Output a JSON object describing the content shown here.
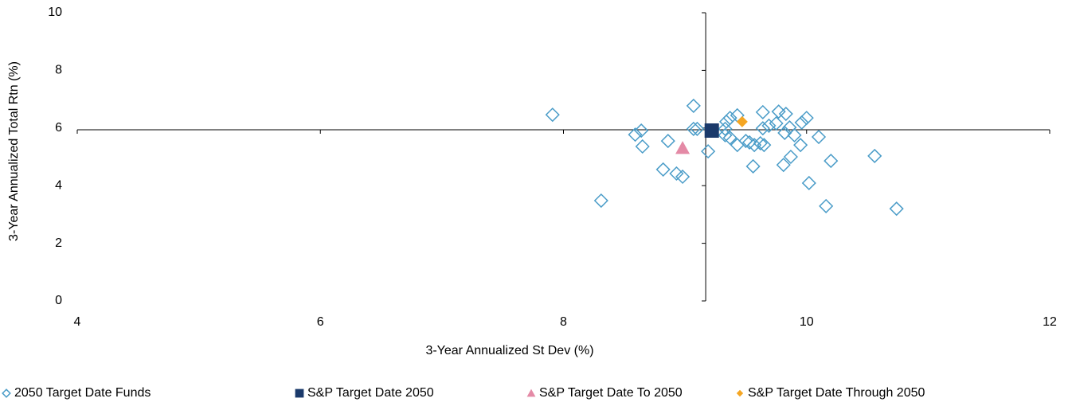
{
  "chart_data": {
    "type": "scatter",
    "xlabel": "3-Year Annualized St Dev (%)",
    "ylabel": "3-Year Annualized Total Rtn (%)",
    "xlim": [
      4,
      12
    ],
    "xticks": [
      4,
      6,
      8,
      10,
      12
    ],
    "ylim": [
      0,
      10
    ],
    "yticks": [
      0,
      2,
      4,
      6,
      8,
      10
    ],
    "x_axis_crosses_at": 5.94,
    "y_axis_crosses_at": 9.17,
    "legend": "bottom",
    "series": [
      {
        "name": "2050 Target Date Funds",
        "color": "#4a9cc8",
        "marker": "diamond",
        "filled": false,
        "x": [
          7.91,
          8.31,
          8.59,
          8.64,
          8.65,
          8.82,
          8.86,
          8.93,
          8.98,
          9.07,
          9.07,
          9.1,
          9.19,
          9.34,
          9.37,
          9.33,
          9.33,
          9.37,
          9.43,
          9.43,
          9.5,
          9.53,
          9.57,
          9.56,
          9.62,
          9.65,
          9.64,
          9.64,
          9.69,
          9.75,
          9.77,
          9.82,
          9.81,
          9.83,
          9.86,
          9.87,
          9.9,
          9.95,
          9.96,
          10.0,
          10.02,
          10.1,
          10.2,
          10.16,
          10.56,
          10.74
        ],
        "y": [
          6.46,
          3.48,
          5.77,
          5.91,
          5.36,
          4.56,
          5.55,
          4.42,
          4.31,
          6.77,
          5.97,
          5.97,
          5.19,
          6.22,
          6.35,
          5.97,
          5.75,
          5.66,
          5.41,
          6.44,
          5.55,
          5.5,
          5.41,
          4.67,
          5.47,
          5.41,
          6.55,
          5.99,
          6.08,
          6.16,
          6.57,
          5.83,
          4.72,
          6.49,
          6.02,
          5.0,
          5.75,
          5.41,
          6.19,
          6.35,
          4.09,
          5.69,
          4.86,
          3.29,
          5.03,
          3.2
        ]
      },
      {
        "name": "S&P Target Date 2050",
        "color": "#1b3a6b",
        "marker": "square",
        "filled": true,
        "x": [
          9.22
        ],
        "y": [
          5.91
        ]
      },
      {
        "name": "S&P Target Date To 2050",
        "color": "#e48aa6",
        "marker": "triangle",
        "filled": true,
        "x": [
          8.98
        ],
        "y": [
          5.3
        ]
      },
      {
        "name": "S&P Target Date Through 2050",
        "color": "#f5a623",
        "marker": "smalldiamond",
        "filled": true,
        "x": [
          9.47
        ],
        "y": [
          6.22
        ]
      }
    ]
  }
}
